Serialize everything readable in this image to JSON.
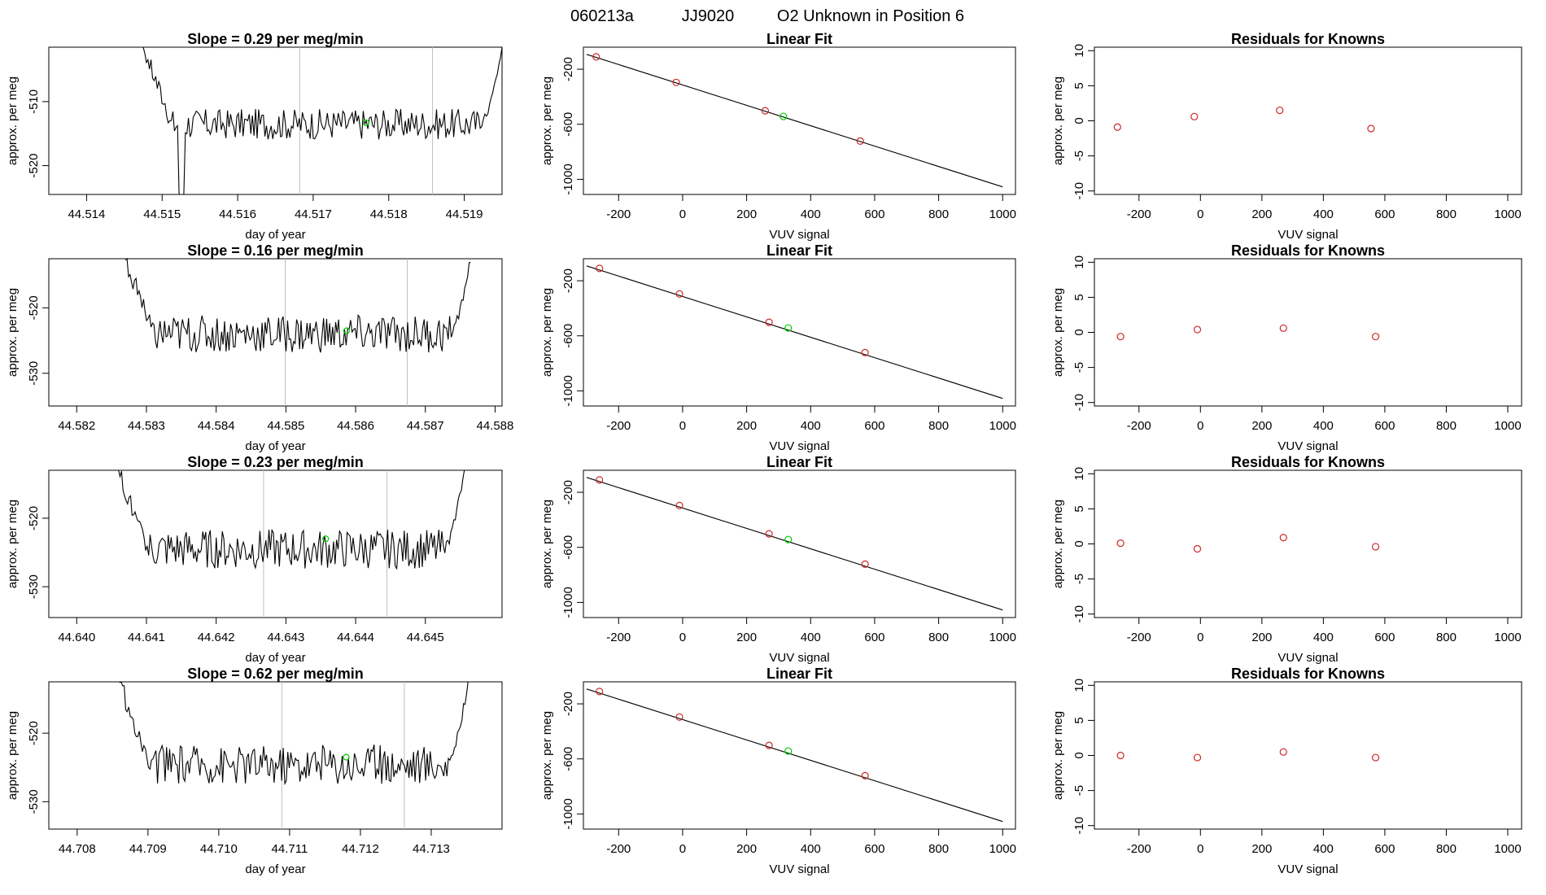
{
  "header": {
    "run_id": "060213a",
    "cylinder": "JJ9020",
    "title": "O2 Unknown in Position  6"
  },
  "colors": {
    "axis": "#000000",
    "trace": "#000000",
    "vline": "#bebebe",
    "known": "#cd2626",
    "unknown": "#00cd00"
  },
  "chart_data": [
    {
      "type": "line",
      "panel": "timeseries",
      "row": 1,
      "title": "Slope =  0.29  per meg/min",
      "xlabel": "day of year",
      "ylabel": "approx. per meg",
      "xlim": [
        44.5135,
        44.5195
      ],
      "ylim": [
        -524.5,
        -501.5
      ],
      "xticks": [
        "44.514",
        "44.515",
        "44.516",
        "44.517",
        "44.518",
        "44.519"
      ],
      "yticks": [
        "-510",
        "-520"
      ],
      "vlines": [
        44.51682,
        44.51858
      ],
      "unknown_point": {
        "x": 44.5177,
        "y": -513.3
      },
      "trace": {
        "x_start": 44.51475,
        "x_end": 44.5195,
        "y_top_left": -501.5,
        "y_top_right": -501.5,
        "level": -513.5,
        "noise": 1.5,
        "dip_x": 44.51525,
        "dip_y": -524.5
      }
    },
    {
      "type": "scatter",
      "panel": "fit",
      "row": 1,
      "title": "Linear Fit",
      "xlabel": "VUV signal",
      "ylabel": "approx. per meg",
      "xlim": [
        -310,
        1040
      ],
      "ylim": [
        -1110,
        -40
      ],
      "xticks": [
        "-200",
        "0",
        "200",
        "400",
        "600",
        "800",
        "1000"
      ],
      "yticks": [
        "-200",
        "-600",
        "-1000"
      ],
      "line": {
        "x": [
          -300,
          1000
        ],
        "y": [
          -92,
          -1055
        ]
      },
      "knowns": {
        "x": [
          -270,
          -20,
          258,
          555
        ],
        "y": [
          -110,
          -296,
          -502,
          -722
        ]
      },
      "unknown": {
        "x": 315,
        "y": -543
      }
    },
    {
      "type": "scatter",
      "panel": "residuals",
      "row": 1,
      "title": "Residuals for Knowns",
      "xlabel": "VUV signal",
      "ylabel": "approx. per meg",
      "xlim": [
        -345,
        1045
      ],
      "ylim": [
        -10.5,
        10.5
      ],
      "xticks": [
        "-200",
        "0",
        "200",
        "400",
        "600",
        "800",
        "1000"
      ],
      "yticks": [
        "10",
        "5",
        "0",
        "-5",
        "-10"
      ],
      "residuals": {
        "x": [
          -270,
          -20,
          258,
          555
        ],
        "y": [
          -0.9,
          0.6,
          1.5,
          -1.1
        ]
      }
    },
    {
      "type": "line",
      "panel": "timeseries",
      "row": 2,
      "title": "Slope =  0.16  per meg/min",
      "xlabel": "day of year",
      "ylabel": "approx. per meg",
      "xlim": [
        44.5816,
        44.5881
      ],
      "ylim": [
        -535,
        -512.5
      ],
      "xticks": [
        "44.582",
        "44.583",
        "44.584",
        "44.585",
        "44.586",
        "44.587",
        "44.588"
      ],
      "yticks": [
        "-520",
        "-530"
      ],
      "vlines": [
        44.58499,
        44.58674
      ],
      "unknown_point": {
        "x": 44.58587,
        "y": -523.5
      },
      "trace": {
        "x_start": 44.5827,
        "x_end": 44.58765,
        "y_top_left": -512.5,
        "y_top_right": -512.5,
        "level": -524,
        "noise": 1.8
      }
    },
    {
      "type": "scatter",
      "panel": "fit",
      "row": 2,
      "title": "Linear Fit",
      "xlabel": "VUV signal",
      "ylabel": "approx. per meg",
      "xlim": [
        -310,
        1040
      ],
      "ylim": [
        -1110,
        -40
      ],
      "xticks": [
        "-200",
        "0",
        "200",
        "400",
        "600",
        "800",
        "1000"
      ],
      "yticks": [
        "-200",
        "-600",
        "-1000"
      ],
      "line": {
        "x": [
          -300,
          1000
        ],
        "y": [
          -92,
          -1055
        ]
      },
      "knowns": {
        "x": [
          -260,
          -10,
          270,
          570
        ],
        "y": [
          -110,
          -296,
          -502,
          -722
        ]
      },
      "unknown": {
        "x": 330,
        "y": -543
      }
    },
    {
      "type": "scatter",
      "panel": "residuals",
      "row": 2,
      "title": "Residuals for Knowns",
      "xlabel": "VUV signal",
      "ylabel": "approx. per meg",
      "xlim": [
        -345,
        1045
      ],
      "ylim": [
        -10.5,
        10.5
      ],
      "xticks": [
        "-200",
        "0",
        "200",
        "400",
        "600",
        "800",
        "1000"
      ],
      "yticks": [
        "10",
        "5",
        "0",
        "-5",
        "-10"
      ],
      "residuals": {
        "x": [
          -260,
          -10,
          270,
          570
        ],
        "y": [
          -0.6,
          0.4,
          0.6,
          -0.6
        ]
      }
    },
    {
      "type": "line",
      "panel": "timeseries",
      "row": 3,
      "title": "Slope =  0.23  per meg/min",
      "xlabel": "day of year",
      "ylabel": "approx. per meg",
      "xlim": [
        44.6396,
        44.6461
      ],
      "ylim": [
        -534.5,
        -513
      ],
      "xticks": [
        "44.640",
        "44.641",
        "44.642",
        "44.643",
        "44.644",
        "44.645"
      ],
      "yticks": [
        "-520",
        "-530"
      ],
      "vlines": [
        44.64268,
        44.64445
      ],
      "unknown_point": {
        "x": 44.64357,
        "y": -523
      },
      "trace": {
        "x_start": 44.6406,
        "x_end": 44.64556,
        "y_top_left": -513,
        "y_top_right": -513,
        "level": -524.5,
        "noise": 1.8
      }
    },
    {
      "type": "scatter",
      "panel": "fit",
      "row": 3,
      "title": "Linear Fit",
      "xlabel": "VUV signal",
      "ylabel": "approx. per meg",
      "xlim": [
        -310,
        1040
      ],
      "ylim": [
        -1110,
        -40
      ],
      "xticks": [
        "-200",
        "0",
        "200",
        "400",
        "600",
        "800",
        "1000"
      ],
      "yticks": [
        "-200",
        "-600",
        "-1000"
      ],
      "line": {
        "x": [
          -300,
          1000
        ],
        "y": [
          -92,
          -1055
        ]
      },
      "knowns": {
        "x": [
          -260,
          -10,
          270,
          570
        ],
        "y": [
          -110,
          -296,
          -502,
          -722
        ]
      },
      "unknown": {
        "x": 330,
        "y": -543
      }
    },
    {
      "type": "scatter",
      "panel": "residuals",
      "row": 3,
      "title": "Residuals for Knowns",
      "xlabel": "VUV signal",
      "ylabel": "approx. per meg",
      "xlim": [
        -345,
        1045
      ],
      "ylim": [
        -10.5,
        10.5
      ],
      "xticks": [
        "-200",
        "0",
        "200",
        "400",
        "600",
        "800",
        "1000"
      ],
      "yticks": [
        "10",
        "5",
        "0",
        "-5",
        "-10"
      ],
      "residuals": {
        "x": [
          -260,
          -10,
          270,
          570
        ],
        "y": [
          0.1,
          -0.7,
          0.9,
          -0.4
        ]
      }
    },
    {
      "type": "line",
      "panel": "timeseries",
      "row": 4,
      "title": "Slope =  0.62  per meg/min",
      "xlabel": "day of year",
      "ylabel": "approx. per meg",
      "xlim": [
        44.7076,
        44.714
      ],
      "ylim": [
        -534,
        -512.5
      ],
      "xticks": [
        "44.708",
        "44.709",
        "44.710",
        "44.711",
        "44.712",
        "44.713"
      ],
      "yticks": [
        "-520",
        "-530"
      ],
      "vlines": [
        44.71089,
        44.71262
      ],
      "unknown_point": {
        "x": 44.7118,
        "y": -523.5
      },
      "trace": {
        "x_start": 44.7086,
        "x_end": 44.71352,
        "y_top_left": -512.5,
        "y_top_right": -512.5,
        "level": -524.5,
        "noise": 1.8
      }
    },
    {
      "type": "scatter",
      "panel": "fit",
      "row": 4,
      "title": "Linear Fit",
      "xlabel": "VUV signal",
      "ylabel": "approx. per meg",
      "xlim": [
        -310,
        1040
      ],
      "ylim": [
        -1110,
        -40
      ],
      "xticks": [
        "-200",
        "0",
        "200",
        "400",
        "600",
        "800",
        "1000"
      ],
      "yticks": [
        "-200",
        "-600",
        "-1000"
      ],
      "line": {
        "x": [
          -300,
          1000
        ],
        "y": [
          -92,
          -1055
        ]
      },
      "knowns": {
        "x": [
          -260,
          -10,
          270,
          570
        ],
        "y": [
          -110,
          -296,
          -502,
          -722
        ]
      },
      "unknown": {
        "x": 330,
        "y": -543
      }
    },
    {
      "type": "scatter",
      "panel": "residuals",
      "row": 4,
      "title": "Residuals for Knowns",
      "xlabel": "VUV signal",
      "ylabel": "approx. per meg",
      "xlim": [
        -345,
        1045
      ],
      "ylim": [
        -10.5,
        10.5
      ],
      "xticks": [
        "-200",
        "0",
        "200",
        "400",
        "600",
        "800",
        "1000"
      ],
      "yticks": [
        "10",
        "5",
        "0",
        "-5",
        "-10"
      ],
      "residuals": {
        "x": [
          -260,
          -10,
          270,
          570
        ],
        "y": [
          0.0,
          -0.3,
          0.5,
          -0.3
        ]
      }
    }
  ]
}
